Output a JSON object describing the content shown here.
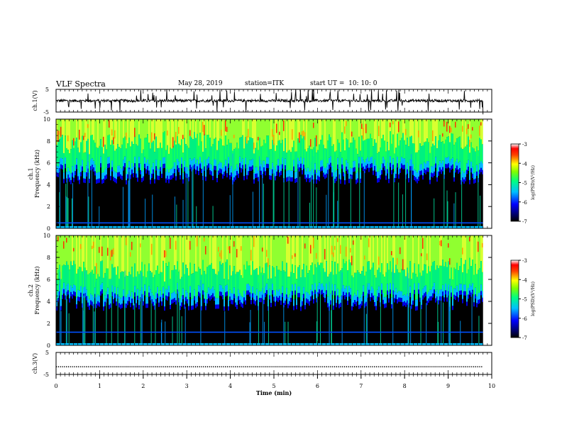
{
  "header": {
    "title": "VLF Spectra",
    "date": "May 28, 2019",
    "station": "station=ITK",
    "start_ut": "start UT =  10: 10: 0"
  },
  "chart_data": [
    {
      "type": "line",
      "ylabel": "ch.1(V)",
      "ylim": [
        -5,
        5
      ],
      "yticks": [
        "5",
        "-5"
      ],
      "xlim": [
        0,
        10
      ],
      "series": [
        {
          "baseline_v": 0,
          "style": "noisy trace with frequent impulsive spikes, ends ~9.8 min"
        }
      ]
    },
    {
      "type": "heatmap",
      "ylabel": "Frequency  (kHz)",
      "channel_label": "ch.1",
      "ylim": [
        0,
        10
      ],
      "yticks": [
        "0",
        "2",
        "4",
        "6",
        "8",
        "10"
      ],
      "xlim": [
        0,
        10
      ],
      "data_end_min": 9.8,
      "background_cutoff_khz": 5.2,
      "interference_line_khz": [
        0.5
      ],
      "colorbar": {
        "label": "log(PSD)(V²/Hz)",
        "range": [
          -7,
          -3
        ],
        "ticks": [
          "-3",
          "-4",
          "-5",
          "-6",
          "-7"
        ]
      }
    },
    {
      "type": "heatmap",
      "ylabel": "Frequency  (kHz)",
      "channel_label": "ch.2",
      "ylim": [
        0,
        10
      ],
      "yticks": [
        "0",
        "2",
        "4",
        "6",
        "8",
        "10"
      ],
      "xlim": [
        0,
        10
      ],
      "data_end_min": 9.8,
      "background_cutoff_khz": 4.3,
      "interference_line_khz": [
        1.2
      ],
      "colorbar": {
        "label": "log(PSD)(V²/Hz)",
        "range": [
          -7,
          -3
        ],
        "ticks": [
          "-3",
          "-4",
          "-5",
          "-6",
          "-7"
        ]
      }
    },
    {
      "type": "line",
      "ylabel": "ch.3(V)",
      "ylim": [
        -5,
        5
      ],
      "yticks": [
        "5",
        "-5"
      ],
      "xlim": [
        0,
        10
      ],
      "series": [
        {
          "baseline_v": -1.5,
          "style": "flat dotted trace"
        }
      ]
    }
  ],
  "xaxis": {
    "label": "Time  (min)",
    "ticks": [
      "0",
      "1",
      "2",
      "3",
      "4",
      "5",
      "6",
      "7",
      "8",
      "9",
      "10"
    ]
  },
  "colors": {
    "background": "#000000",
    "axis": "#000000"
  }
}
